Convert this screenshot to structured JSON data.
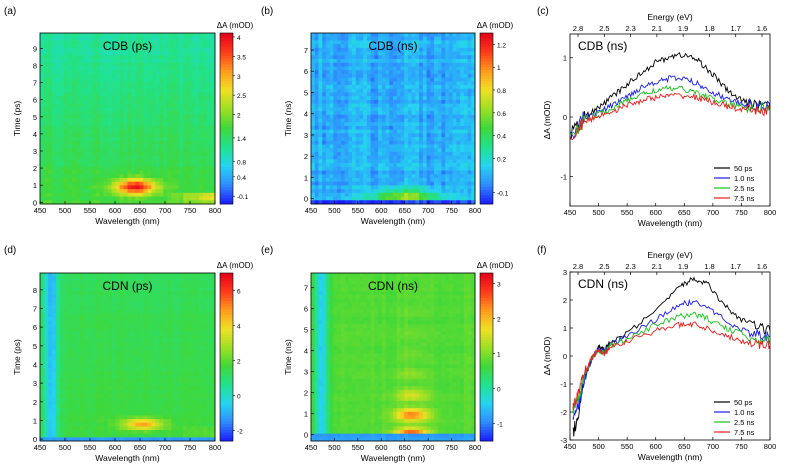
{
  "colorscale": [
    "#1a1aff",
    "#2f8cff",
    "#26d4f0",
    "#21e28e",
    "#3fd83a",
    "#9ee024",
    "#f0e024",
    "#ff9a1e",
    "#ff3a1a",
    "#e3001b"
  ],
  "line_colors": {
    "50 ps": "#000000",
    "1.0 ns": "#1d1df0",
    "2.5 ns": "#19c219",
    "7.5 ns": "#ee1c1c"
  },
  "chart_data": [
    {
      "panel": "(a)",
      "type": "heatmap",
      "title": "CDB (ps)",
      "xlabel": "Wavelength (nm)",
      "ylabel": "Time (ps)",
      "xticks": [
        450,
        500,
        550,
        600,
        650,
        700,
        750,
        800
      ],
      "xlim": [
        450,
        800
      ],
      "yticks": [
        0,
        1,
        2,
        3,
        4,
        5,
        6,
        7,
        8,
        9
      ],
      "ylim": [
        -0.1,
        9.9
      ],
      "colorbar_label": "ΔA (mOD)",
      "colorbar_ticks": [
        -0.1,
        0.4,
        0.8,
        1.4,
        2.0,
        2.5,
        3.0,
        3.5,
        4.0
      ],
      "zlim": [
        -0.3,
        4.1
      ],
      "model": {
        "baseline": 1.65,
        "decay": 0.35,
        "peak_center": 640,
        "peak_width": 42,
        "peak_amp": 2.3,
        "peak_time": 0.9,
        "peak_tau": 0.45,
        "edge": "rising",
        "edge_start": 700,
        "edge_amp": 1.4,
        "blue_dip": 0,
        "noise": 0.08
      }
    },
    {
      "panel": "(b)",
      "type": "heatmap",
      "title": "CDB (ns)",
      "xlabel": "Wavelength (nm)",
      "ylabel": "Time (ns)",
      "xticks": [
        450,
        500,
        550,
        600,
        650,
        700,
        750,
        800
      ],
      "xlim": [
        450,
        800
      ],
      "yticks": [
        0,
        1,
        2,
        3,
        4,
        5,
        6,
        7
      ],
      "ylim": [
        -0.25,
        7.8
      ],
      "colorbar_label": "ΔA (mOD)",
      "colorbar_ticks": [
        -0.1,
        0.2,
        0.4,
        0.6,
        0.8,
        1.0,
        1.2
      ],
      "zlim": [
        -0.2,
        1.3
      ],
      "model": {
        "baseline": 0.05,
        "decay": 0,
        "peak_center": 650,
        "peak_width": 70,
        "peak_amp": 0.55,
        "peak_time": 0.1,
        "peak_tau": 0.35,
        "edge": "none",
        "edge_start": 0,
        "edge_amp": 0,
        "blue_dip": 0,
        "noise": 0.16
      }
    },
    {
      "panel": "(c)",
      "type": "line",
      "title": "CDB (ns)",
      "xlabel": "Wavelength (nm)",
      "ylabel": "ΔA (mOD)",
      "x2label": "Energy (eV)",
      "xticks": [
        450,
        500,
        550,
        600,
        650,
        700,
        750,
        800
      ],
      "xlim": [
        450,
        800
      ],
      "yticks": [
        -1,
        0,
        1
      ],
      "ylim": [
        -1.5,
        1.4
      ],
      "energy_ticks": [
        "2.8",
        "2.5",
        "2.3",
        "2.1",
        "1.9",
        "1.8",
        "1.7",
        "1.6"
      ],
      "series": [
        {
          "name": "50 ps",
          "x": [
            450,
            475,
            500,
            525,
            550,
            575,
            600,
            625,
            650,
            675,
            700,
            725,
            750,
            775,
            800
          ],
          "y": [
            -0.3,
            0.0,
            0.15,
            0.35,
            0.55,
            0.75,
            0.92,
            1.02,
            1.05,
            0.95,
            0.72,
            0.45,
            0.28,
            0.2,
            0.25
          ]
        },
        {
          "name": "1.0 ns",
          "x": [
            450,
            475,
            500,
            525,
            550,
            575,
            600,
            625,
            650,
            675,
            700,
            725,
            750,
            775,
            800
          ],
          "y": [
            -0.35,
            0.0,
            0.08,
            0.2,
            0.35,
            0.5,
            0.6,
            0.65,
            0.65,
            0.55,
            0.42,
            0.3,
            0.22,
            0.18,
            0.2
          ]
        },
        {
          "name": "2.5 ns",
          "x": [
            450,
            475,
            500,
            525,
            550,
            575,
            600,
            625,
            650,
            675,
            700,
            725,
            750,
            775,
            800
          ],
          "y": [
            -0.35,
            -0.05,
            0.05,
            0.15,
            0.28,
            0.38,
            0.45,
            0.48,
            0.47,
            0.4,
            0.3,
            0.22,
            0.18,
            0.15,
            0.18
          ]
        },
        {
          "name": "7.5 ns",
          "x": [
            450,
            475,
            500,
            525,
            550,
            575,
            600,
            625,
            650,
            675,
            700,
            725,
            750,
            775,
            800
          ],
          "y": [
            -0.4,
            -0.08,
            0.02,
            0.1,
            0.2,
            0.28,
            0.33,
            0.36,
            0.36,
            0.32,
            0.25,
            0.18,
            0.12,
            0.1,
            0.12
          ]
        }
      ]
    },
    {
      "panel": "(d)",
      "type": "heatmap",
      "title": "CDN (ps)",
      "xlabel": "Wavelength (nm)",
      "ylabel": "Time (ps)",
      "xticks": [
        450,
        500,
        550,
        600,
        650,
        700,
        750,
        800
      ],
      "xlim": [
        450,
        800
      ],
      "yticks": [
        0,
        1,
        2,
        3,
        4,
        5,
        6,
        7,
        8
      ],
      "ylim": [
        -0.1,
        8.9
      ],
      "colorbar_label": "ΔA (mOD)",
      "colorbar_ticks": [
        -2,
        0,
        2,
        4,
        6
      ],
      "zlim": [
        -2.6,
        7.0
      ],
      "model": {
        "baseline": 1.6,
        "decay": 0.2,
        "peak_center": 655,
        "peak_width": 40,
        "peak_amp": 3.2,
        "peak_time": 0.8,
        "peak_tau": 0.3,
        "edge": "rising",
        "edge_start": 690,
        "edge_amp": 0.6,
        "blue_dip": -2.3,
        "noise": 0.05
      }
    },
    {
      "panel": "(e)",
      "type": "heatmap",
      "title": "CDN (ns)",
      "xlabel": "Wavelength (nm)",
      "ylabel": "Time (ns)",
      "xticks": [
        450,
        500,
        550,
        600,
        650,
        700,
        750,
        800
      ],
      "xlim": [
        450,
        800
      ],
      "yticks": [
        0,
        1,
        2,
        3,
        4,
        5,
        6,
        7
      ],
      "ylim": [
        -0.3,
        7.7
      ],
      "colorbar_label": "ΔA (mOD)",
      "colorbar_ticks": [
        -1.0,
        0.0,
        1.0,
        2.0,
        3.0
      ],
      "zlim": [
        -1.5,
        3.3
      ],
      "model": {
        "baseline": 0.75,
        "decay": 0,
        "peak_center": 665,
        "peak_width": 40,
        "peak_amp": 1.6,
        "peak_time": 0.2,
        "peak_tau": 1.6,
        "edge": "none",
        "edge_start": 0,
        "edge_amp": 0,
        "blue_dip": -1.2,
        "noise": 0.05,
        "banded": true
      }
    },
    {
      "panel": "(f)",
      "type": "line",
      "title": "CDN (ns)",
      "xlabel": "Wavelength (nm)",
      "ylabel": "ΔA (mOD)",
      "x2label": "Energy (eV)",
      "xticks": [
        450,
        500,
        550,
        600,
        650,
        700,
        750,
        800
      ],
      "xlim": [
        450,
        800
      ],
      "yticks": [
        -3,
        -2,
        -1,
        0,
        1,
        2,
        3
      ],
      "ylim": [
        -3,
        3
      ],
      "energy_ticks": [
        "2.8",
        "2.5",
        "2.3",
        "2.1",
        "1.9",
        "1.8",
        "1.7",
        "1.6"
      ],
      "series": [
        {
          "name": "50 ps",
          "x": [
            455,
            465,
            475,
            490,
            500,
            510,
            520,
            550,
            600,
            640,
            665,
            690,
            720,
            750,
            780,
            800
          ],
          "y": [
            -2.8,
            -2.0,
            -0.8,
            0.0,
            0.3,
            0.2,
            0.45,
            0.8,
            1.6,
            2.4,
            2.8,
            2.6,
            1.8,
            1.3,
            1.0,
            0.9
          ]
        },
        {
          "name": "1.0 ns",
          "x": [
            455,
            465,
            475,
            490,
            500,
            510,
            520,
            550,
            600,
            640,
            665,
            690,
            720,
            750,
            780,
            800
          ],
          "y": [
            -2.4,
            -1.8,
            -0.8,
            0.0,
            0.25,
            0.15,
            0.4,
            0.7,
            1.3,
            1.8,
            1.95,
            1.75,
            1.3,
            0.95,
            0.75,
            0.7
          ]
        },
        {
          "name": "2.5 ns",
          "x": [
            455,
            465,
            475,
            490,
            500,
            510,
            520,
            550,
            600,
            640,
            665,
            690,
            720,
            750,
            780,
            800
          ],
          "y": [
            -2.0,
            -1.5,
            -0.7,
            0.0,
            0.2,
            0.1,
            0.35,
            0.6,
            1.1,
            1.4,
            1.5,
            1.35,
            1.0,
            0.8,
            0.6,
            0.55
          ]
        },
        {
          "name": "7.5 ns",
          "x": [
            455,
            465,
            475,
            490,
            500,
            510,
            520,
            550,
            600,
            640,
            665,
            690,
            720,
            750,
            780,
            800
          ],
          "y": [
            -1.8,
            -1.3,
            -0.6,
            0.0,
            0.18,
            0.08,
            0.3,
            0.55,
            0.9,
            1.1,
            1.15,
            1.0,
            0.75,
            0.55,
            0.42,
            0.38
          ]
        }
      ]
    }
  ]
}
